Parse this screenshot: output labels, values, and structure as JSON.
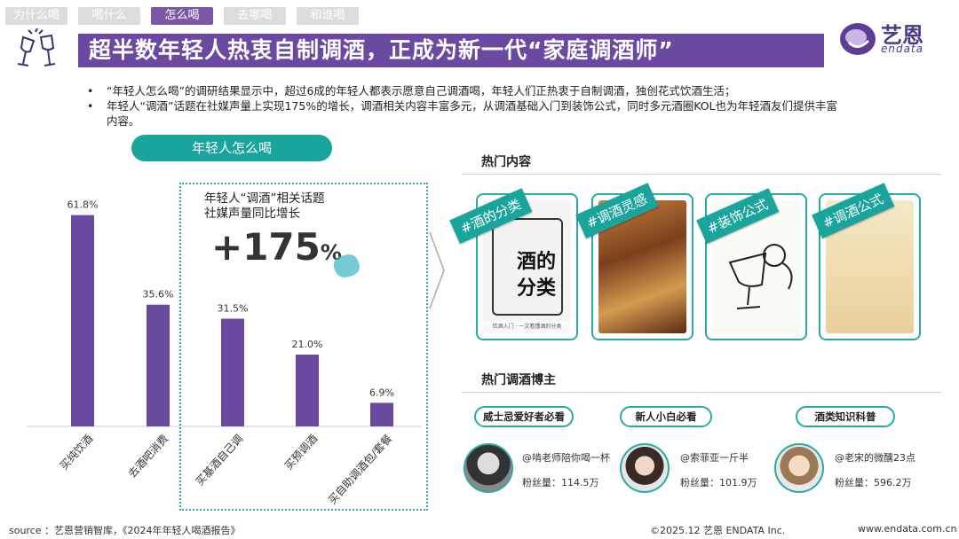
{
  "tabs": [
    "为什么喝",
    "喝什么",
    "怎么喝",
    "去哪喝",
    "和谁喝"
  ],
  "title": "超半数年轻人热衷自制调酒，正成为新一代“家庭调酒师”",
  "logo": {
    "name": "艺恩",
    "sub": "endata"
  },
  "bullets": [
    "“年轻人怎么喝”的调研结果显示中，超过6成的年轻人都表示愿意自己调酒喝，年轻人们正热衷于自制调酒，独创花式饮酒生活；",
    "年轻人“调酒”话题在社媒声量上实现175%的增长，调酒相关内容丰富多元，从调酒基础入门到装饰公式，同时多元酒圈KOL也为年轻酒友们提供丰富内容。"
  ],
  "section_pill": "年轻人怎么喝",
  "callout": {
    "title_line1": "年轻人“调酒”相关话题",
    "title_line2": "社媒声量同比增长",
    "stat": "+175",
    "stat_unit": "%"
  },
  "chart_data": {
    "type": "bar",
    "categories": [
      "买纯饮酒",
      "去酒吧消费",
      "买基酒自己调",
      "买预调酒",
      "买自助调酒包/套餐"
    ],
    "values": [
      61.8,
      35.6,
      31.5,
      21.0,
      6.9
    ],
    "value_labels": [
      "61.8%",
      "35.6%",
      "31.5%",
      "21.0%",
      "6.9%"
    ],
    "ylim": [
      0,
      70
    ],
    "color": "#6a4aa0",
    "grid": false,
    "title": "",
    "xlabel": "",
    "ylabel": ""
  },
  "hot_content": {
    "label": "热门内容",
    "cards": [
      {
        "tag": "#酒的分类",
        "cover_text": "酒的分类",
        "caption": "饮酒入门 · 一文看懂酒的分类"
      },
      {
        "tag": "#调酒灵感",
        "cover_text": "",
        "caption": ""
      },
      {
        "tag": "#装饰公式",
        "cover_text": "",
        "caption": ""
      },
      {
        "tag": "#调酒公式",
        "cover_text": "",
        "caption": ""
      }
    ]
  },
  "bloggers": {
    "label": "热门调酒博主",
    "items": [
      {
        "category": "威士忌爱好者必看",
        "handle": "@啃老师陪你喝一杯",
        "fans": "粉丝量：114.5万"
      },
      {
        "category": "新人小白必看",
        "handle": "@索菲亚一斤半",
        "fans": "粉丝量：101.9万"
      },
      {
        "category": "酒类知识科普",
        "handle": "@老宋的微醺23点",
        "fans": "粉丝量：596.2万"
      }
    ]
  },
  "footer": {
    "source": "source ：艺恩营销智库，《2024年年轻人喝酒报告》",
    "copyright": "©2025.12 艺恩 ENDATA Inc.",
    "url": "www.endata.com.cn"
  },
  "colors": {
    "purple": "#6a4aa0",
    "teal": "#1aa59c",
    "tab_inactive": "#dcdcdc"
  }
}
